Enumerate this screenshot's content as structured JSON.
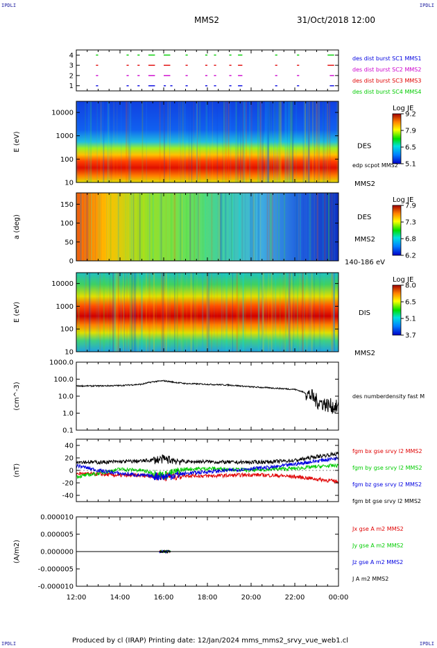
{
  "header": {
    "corner_tl": "IPDLI",
    "corner_tr": "IPDLI",
    "corner_bl": "IPDLI",
    "corner_br": "IPDLI",
    "spacecraft": "MMS2",
    "datetime": "31/Oct/2018 12:00"
  },
  "footer": {
    "text": "Produced by cl (IRAP)   Printing date: 12/Jan/2024   mms_mms2_srvy_vue_web1.cl"
  },
  "colors": {
    "black": "#000000",
    "red": "#e00000",
    "green": "#00cc00",
    "blue": "#0000e0",
    "magenta": "#cc00cc"
  },
  "time_axis": {
    "tick_labels": [
      "12:00",
      "14:00",
      "16:00",
      "18:00",
      "20:00",
      "22:00",
      "00:00"
    ],
    "range_hours": [
      12,
      24
    ]
  },
  "chart_data": [
    {
      "type": "scatter",
      "name": "burst-availability",
      "y_ticks": [
        "4",
        "3",
        "2",
        "1"
      ],
      "ylim": [
        0.5,
        4.5
      ],
      "series": [
        {
          "name": "des dist burst SC1 MMS1",
          "color": "#0000e0",
          "level": 1,
          "intervals": [
            [
              12.9,
              13.0
            ],
            [
              14.3,
              14.4
            ],
            [
              14.8,
              14.9
            ],
            [
              15.3,
              15.6
            ],
            [
              16.0,
              16.1
            ],
            [
              16.3,
              16.4
            ],
            [
              17.0,
              17.1
            ],
            [
              17.9,
              18.0
            ],
            [
              18.3,
              18.4
            ],
            [
              19.0,
              19.1
            ],
            [
              19.4,
              19.6
            ],
            [
              21.1,
              21.2
            ],
            [
              22.1,
              22.2
            ],
            [
              23.6,
              23.8
            ]
          ]
        },
        {
          "name": "des dist burst SC2 MMS2",
          "color": "#cc00cc",
          "level": 2,
          "intervals": [
            [
              12.9,
              13.0
            ],
            [
              14.3,
              14.4
            ],
            [
              14.8,
              14.9
            ],
            [
              15.3,
              15.6
            ],
            [
              16.0,
              16.3
            ],
            [
              17.0,
              17.1
            ],
            [
              17.9,
              18.0
            ],
            [
              18.3,
              18.4
            ],
            [
              19.0,
              19.1
            ],
            [
              19.4,
              19.6
            ],
            [
              21.1,
              21.2
            ],
            [
              22.1,
              22.2
            ],
            [
              23.6,
              23.8
            ]
          ]
        },
        {
          "name": "des dist burst SC3 MMS3",
          "color": "#e00000",
          "level": 3,
          "intervals": [
            [
              12.9,
              13.0
            ],
            [
              14.3,
              14.4
            ],
            [
              14.8,
              14.9
            ],
            [
              15.3,
              15.6
            ],
            [
              16.0,
              16.3
            ],
            [
              17.0,
              17.1
            ],
            [
              17.9,
              18.0
            ],
            [
              18.3,
              18.4
            ],
            [
              19.0,
              19.1
            ],
            [
              19.4,
              19.6
            ],
            [
              21.1,
              21.2
            ],
            [
              22.1,
              22.2
            ],
            [
              23.5,
              23.8
            ]
          ]
        },
        {
          "name": "des dist burst SC4 MMS4",
          "color": "#00cc00",
          "level": 4,
          "intervals": [
            [
              12.9,
              13.0
            ],
            [
              14.3,
              14.4
            ],
            [
              14.8,
              14.9
            ],
            [
              15.3,
              15.6
            ],
            [
              16.0,
              16.3
            ],
            [
              17.0,
              17.1
            ],
            [
              17.9,
              18.0
            ],
            [
              18.3,
              18.4
            ],
            [
              19.0,
              19.1
            ],
            [
              19.4,
              19.6
            ],
            [
              21.1,
              21.2
            ],
            [
              22.1,
              22.2
            ],
            [
              23.5,
              23.8
            ]
          ]
        }
      ]
    },
    {
      "type": "heatmap",
      "name": "des-energy-spectrogram",
      "ylabel": "E (eV)",
      "ylog": true,
      "ylim": [
        10,
        30000
      ],
      "y_ticks": [
        "10000",
        "1000",
        "100",
        "10"
      ],
      "label_right": "DES",
      "label_sc": "MMS2",
      "overlay_label": "edp scpot MMS2",
      "colorbar": {
        "title": "Log JE",
        "min": 5.1,
        "max": 9.2,
        "ticks": [
          "9.2",
          "7.9",
          "6.5",
          "5.1"
        ]
      },
      "peak_energy_eV": 40
    },
    {
      "type": "heatmap",
      "name": "des-pitch-angle",
      "ylabel": "a (deg)",
      "ylim": [
        0,
        180
      ],
      "y_ticks": [
        "150",
        "100",
        "50",
        "0"
      ],
      "label_right": "DES",
      "label_sc": "MMS2",
      "energy_band": "140-186 eV",
      "colorbar": {
        "title": "Log JE",
        "min": 6.2,
        "max": 7.9,
        "ticks": [
          "7.9",
          "7.3",
          "6.8",
          "6.2"
        ]
      }
    },
    {
      "type": "heatmap",
      "name": "dis-energy-spectrogram",
      "ylabel": "E (eV)",
      "ylog": true,
      "ylim": [
        10,
        30000
      ],
      "y_ticks": [
        "10000",
        "1000",
        "100",
        "10"
      ],
      "label_right": "DIS",
      "label_sc": "MMS2",
      "colorbar": {
        "title": "Log JE",
        "min": 3.7,
        "max": 8.0,
        "ticks": [
          "8.0",
          "6.5",
          "5.1",
          "3.7"
        ]
      },
      "peak_energy_eV": 450
    },
    {
      "type": "line",
      "name": "des-number-density",
      "ylabel": "(cm^-3)",
      "ylog": true,
      "ylim": [
        0.1,
        1000
      ],
      "y_ticks": [
        "1000.0",
        "100.0",
        "10.0",
        "1.0",
        "0.1"
      ],
      "series": [
        {
          "name": "des numberdensity fast M",
          "color": "#000000",
          "x": [
            12.0,
            13.0,
            14.0,
            15.0,
            15.5,
            16.0,
            16.5,
            17.0,
            18.0,
            19.0,
            20.0,
            21.0,
            22.0,
            22.5,
            23.0,
            23.5,
            24.0
          ],
          "y": [
            40,
            40,
            42,
            50,
            70,
            80,
            65,
            55,
            50,
            45,
            35,
            30,
            25,
            15,
            5,
            3,
            2
          ]
        }
      ]
    },
    {
      "type": "line",
      "name": "fgm-magnetic-field",
      "ylabel": "(nT)",
      "ylim": [
        -50,
        50
      ],
      "y_ticks": [
        "40",
        "20",
        "0",
        "-20",
        "-40"
      ],
      "series": [
        {
          "name": "fgm bx gse srvy l2 MMS2",
          "color": "#e00000",
          "x": [
            12.0,
            13.0,
            14.0,
            15.0,
            16.0,
            17.0,
            18.0,
            19.0,
            20.0,
            21.0,
            22.0,
            23.0,
            24.0
          ],
          "y": [
            -5,
            -6,
            -8,
            -8,
            -10,
            -8,
            -9,
            -8,
            -7,
            -8,
            -10,
            -14,
            -18
          ]
        },
        {
          "name": "fgm by gse srvy l2 MMS2",
          "color": "#00cc00",
          "x": [
            12.0,
            13.0,
            14.0,
            15.0,
            16.0,
            17.0,
            18.0,
            19.0,
            20.0,
            21.0,
            22.0,
            23.0,
            24.0
          ],
          "y": [
            -10,
            -5,
            2,
            0,
            -8,
            2,
            3,
            2,
            0,
            2,
            3,
            6,
            8
          ]
        },
        {
          "name": "fgm bz gse srvy l2 MMS2",
          "color": "#0000e0",
          "x": [
            12.0,
            13.0,
            14.0,
            15.0,
            16.0,
            17.0,
            18.0,
            19.0,
            20.0,
            21.0,
            22.0,
            23.0,
            24.0
          ],
          "y": [
            8,
            0,
            -5,
            -8,
            -10,
            -5,
            -2,
            0,
            3,
            5,
            10,
            15,
            20
          ]
        },
        {
          "name": "fgm bt gse srvy l2 MMS2",
          "color": "#000000",
          "x": [
            12.0,
            13.0,
            14.0,
            15.0,
            16.0,
            17.0,
            18.0,
            19.0,
            20.0,
            21.0,
            22.0,
            23.0,
            24.0
          ],
          "y": [
            14,
            13,
            14,
            15,
            18,
            14,
            14,
            13,
            13,
            14,
            16,
            22,
            27
          ]
        }
      ]
    },
    {
      "type": "line",
      "name": "current-density",
      "ylabel": "(A/m2)",
      "ylim": [
        -1e-05,
        1e-05
      ],
      "y_ticks": [
        "0.000010",
        "0.000005",
        "0.000000",
        "-0.000005",
        "-0.000010"
      ],
      "series": [
        {
          "name": "Jx gse A m2 MMS2",
          "color": "#e00000",
          "x": [
            12,
            24
          ],
          "y": [
            0,
            0
          ]
        },
        {
          "name": "Jy gse A m2 MMS2",
          "color": "#00cc00",
          "x": [
            12,
            24
          ],
          "y": [
            0,
            0
          ]
        },
        {
          "name": "Jz gse A m2 MMS2",
          "color": "#0000e0",
          "x": [
            12,
            24
          ],
          "y": [
            0,
            0
          ]
        },
        {
          "name": "J A m2 MMS2",
          "color": "#000000",
          "x": [
            12,
            24
          ],
          "y": [
            0,
            0
          ]
        }
      ]
    }
  ]
}
